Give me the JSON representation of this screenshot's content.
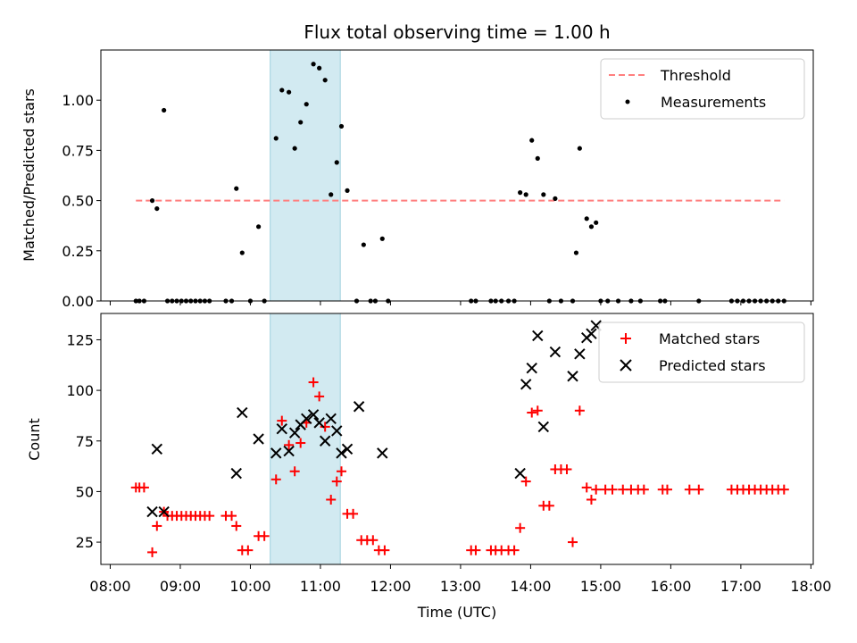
{
  "chart_data": {
    "title": "Flux total observing time = 1.00 h",
    "xlabel": "Time (UTC)",
    "x_ticks": [
      "08:00",
      "09:00",
      "10:00",
      "11:00",
      "12:00",
      "13:00",
      "14:00",
      "15:00",
      "16:00",
      "17:00",
      "18:00"
    ],
    "x_range": [
      "07:52",
      "18:02"
    ],
    "shaded_interval": [
      "10:17",
      "11:17"
    ],
    "colors": {
      "threshold": "#ff7f7f",
      "measurements": "#000000",
      "matched": "#ff0000",
      "predicted": "#000000",
      "shade": "#add8e6"
    },
    "top_panel": {
      "type": "scatter",
      "ylabel": "Matched/Predicted stars",
      "ylim": [
        0,
        1.25
      ],
      "y_ticks": [
        "0.00",
        "0.25",
        "0.50",
        "0.75",
        "1.00"
      ],
      "legend": [
        "Threshold",
        "Measurements"
      ],
      "legend_position": "upper right",
      "threshold": {
        "x_start": "08:22",
        "x_end": "17:37",
        "value": 0.5
      },
      "measurements": [
        [
          "08:22",
          0
        ],
        [
          "08:25",
          0
        ],
        [
          "08:29",
          0
        ],
        [
          "08:36",
          0.5
        ],
        [
          "08:40",
          0.46
        ],
        [
          "08:46",
          0.95
        ],
        [
          "08:49",
          0
        ],
        [
          "08:53",
          0
        ],
        [
          "08:57",
          0
        ],
        [
          "09:01",
          0
        ],
        [
          "09:05",
          0
        ],
        [
          "09:09",
          0
        ],
        [
          "09:13",
          0
        ],
        [
          "09:17",
          0
        ],
        [
          "09:21",
          0
        ],
        [
          "09:25",
          0
        ],
        [
          "09:39",
          0
        ],
        [
          "09:44",
          0
        ],
        [
          "09:48",
          0.56
        ],
        [
          "09:53",
          0.24
        ],
        [
          "10:00",
          0
        ],
        [
          "10:07",
          0.37
        ],
        [
          "10:12",
          0
        ],
        [
          "10:22",
          0.81
        ],
        [
          "10:27",
          1.05
        ],
        [
          "10:33",
          1.04
        ],
        [
          "10:38",
          0.76
        ],
        [
          "10:43",
          0.89
        ],
        [
          "10:48",
          0.98
        ],
        [
          "10:54",
          1.18
        ],
        [
          "10:59",
          1.16
        ],
        [
          "11:04",
          1.1
        ],
        [
          "11:09",
          0.53
        ],
        [
          "11:14",
          0.69
        ],
        [
          "11:18",
          0.87
        ],
        [
          "11:23",
          0.55
        ],
        [
          "11:31",
          0
        ],
        [
          "11:37",
          0.28
        ],
        [
          "11:43",
          0
        ],
        [
          "11:47",
          0
        ],
        [
          "11:53",
          0.31
        ],
        [
          "11:58",
          0
        ],
        [
          "13:09",
          0
        ],
        [
          "13:13",
          0
        ],
        [
          "13:26",
          0
        ],
        [
          "13:30",
          0
        ],
        [
          "13:35",
          0
        ],
        [
          "13:41",
          0
        ],
        [
          "13:46",
          0
        ],
        [
          "13:51",
          0.54
        ],
        [
          "13:56",
          0.53
        ],
        [
          "14:01",
          0.8
        ],
        [
          "14:06",
          0.71
        ],
        [
          "14:11",
          0.53
        ],
        [
          "14:16",
          0
        ],
        [
          "14:21",
          0.51
        ],
        [
          "14:26",
          0
        ],
        [
          "14:36",
          0
        ],
        [
          "14:39",
          0.24
        ],
        [
          "14:42",
          0.76
        ],
        [
          "14:48",
          0.41
        ],
        [
          "14:52",
          0.37
        ],
        [
          "14:56",
          0.39
        ],
        [
          "15:00",
          0
        ],
        [
          "15:06",
          0
        ],
        [
          "15:15",
          0
        ],
        [
          "15:26",
          0
        ],
        [
          "15:34",
          0
        ],
        [
          "15:51",
          0
        ],
        [
          "15:55",
          0
        ],
        [
          "16:24",
          0
        ],
        [
          "16:52",
          0
        ],
        [
          "16:57",
          0
        ],
        [
          "17:02",
          0
        ],
        [
          "17:07",
          0
        ],
        [
          "17:12",
          0
        ],
        [
          "17:17",
          0
        ],
        [
          "17:22",
          0
        ],
        [
          "17:27",
          0
        ],
        [
          "17:32",
          0
        ],
        [
          "17:37",
          0
        ]
      ]
    },
    "bottom_panel": {
      "type": "scatter",
      "ylabel": "Count",
      "ylim": [
        14,
        138
      ],
      "y_ticks": [
        "25",
        "50",
        "75",
        "100",
        "125"
      ],
      "legend": [
        "Matched stars",
        "Predicted stars"
      ],
      "legend_position": "upper right",
      "matched_stars": [
        [
          "08:22",
          52
        ],
        [
          "08:25",
          52
        ],
        [
          "08:29",
          52
        ],
        [
          "08:36",
          20
        ],
        [
          "08:40",
          33
        ],
        [
          "08:46",
          40
        ],
        [
          "08:49",
          38
        ],
        [
          "08:53",
          38
        ],
        [
          "08:57",
          38
        ],
        [
          "09:01",
          38
        ],
        [
          "09:05",
          38
        ],
        [
          "09:09",
          38
        ],
        [
          "09:13",
          38
        ],
        [
          "09:17",
          38
        ],
        [
          "09:21",
          38
        ],
        [
          "09:25",
          38
        ],
        [
          "09:39",
          38
        ],
        [
          "09:44",
          38
        ],
        [
          "09:48",
          33
        ],
        [
          "09:53",
          21
        ],
        [
          "09:58",
          21
        ],
        [
          "10:07",
          28
        ],
        [
          "10:12",
          28
        ],
        [
          "10:22",
          56
        ],
        [
          "10:27",
          85
        ],
        [
          "10:33",
          73
        ],
        [
          "10:38",
          60
        ],
        [
          "10:43",
          74
        ],
        [
          "10:48",
          84
        ],
        [
          "10:54",
          104
        ],
        [
          "10:59",
          97
        ],
        [
          "11:04",
          82
        ],
        [
          "11:09",
          46
        ],
        [
          "11:14",
          55
        ],
        [
          "11:18",
          60
        ],
        [
          "11:23",
          39
        ],
        [
          "11:28",
          39
        ],
        [
          "11:35",
          26
        ],
        [
          "11:40",
          26
        ],
        [
          "11:45",
          26
        ],
        [
          "11:50",
          21
        ],
        [
          "11:55",
          21
        ],
        [
          "13:09",
          21
        ],
        [
          "13:13",
          21
        ],
        [
          "13:26",
          21
        ],
        [
          "13:30",
          21
        ],
        [
          "13:35",
          21
        ],
        [
          "13:41",
          21
        ],
        [
          "13:46",
          21
        ],
        [
          "13:51",
          32
        ],
        [
          "13:56",
          55
        ],
        [
          "14:01",
          89
        ],
        [
          "14:06",
          90
        ],
        [
          "14:11",
          43
        ],
        [
          "14:16",
          43
        ],
        [
          "14:21",
          61
        ],
        [
          "14:26",
          61
        ],
        [
          "14:31",
          61
        ],
        [
          "14:36",
          25
        ],
        [
          "14:42",
          90
        ],
        [
          "14:48",
          52
        ],
        [
          "14:52",
          46
        ],
        [
          "14:56",
          51
        ],
        [
          "15:04",
          51
        ],
        [
          "15:10",
          51
        ],
        [
          "15:19",
          51
        ],
        [
          "15:26",
          51
        ],
        [
          "15:32",
          51
        ],
        [
          "15:37",
          51
        ],
        [
          "15:53",
          51
        ],
        [
          "15:57",
          51
        ],
        [
          "16:16",
          51
        ],
        [
          "16:24",
          51
        ],
        [
          "16:52",
          51
        ],
        [
          "16:57",
          51
        ],
        [
          "17:02",
          51
        ],
        [
          "17:07",
          51
        ],
        [
          "17:12",
          51
        ],
        [
          "17:17",
          51
        ],
        [
          "17:22",
          51
        ],
        [
          "17:27",
          51
        ],
        [
          "17:32",
          51
        ],
        [
          "17:37",
          51
        ]
      ],
      "predicted_stars": [
        [
          "08:36",
          40
        ],
        [
          "08:40",
          71
        ],
        [
          "08:46",
          40
        ],
        [
          "09:48",
          59
        ],
        [
          "09:53",
          89
        ],
        [
          "10:07",
          76
        ],
        [
          "10:22",
          69
        ],
        [
          "10:27",
          81
        ],
        [
          "10:33",
          70
        ],
        [
          "10:38",
          79
        ],
        [
          "10:43",
          83
        ],
        [
          "10:48",
          86
        ],
        [
          "10:54",
          88
        ],
        [
          "10:59",
          84
        ],
        [
          "11:04",
          75
        ],
        [
          "11:09",
          86
        ],
        [
          "11:14",
          80
        ],
        [
          "11:18",
          69
        ],
        [
          "11:23",
          71
        ],
        [
          "11:33",
          92
        ],
        [
          "11:53",
          69
        ],
        [
          "13:51",
          59
        ],
        [
          "13:56",
          103
        ],
        [
          "14:01",
          111
        ],
        [
          "14:06",
          127
        ],
        [
          "14:11",
          82
        ],
        [
          "14:21",
          119
        ],
        [
          "14:36",
          107
        ],
        [
          "14:42",
          118
        ],
        [
          "14:48",
          126
        ],
        [
          "14:52",
          128
        ],
        [
          "14:56",
          132
        ]
      ]
    }
  }
}
